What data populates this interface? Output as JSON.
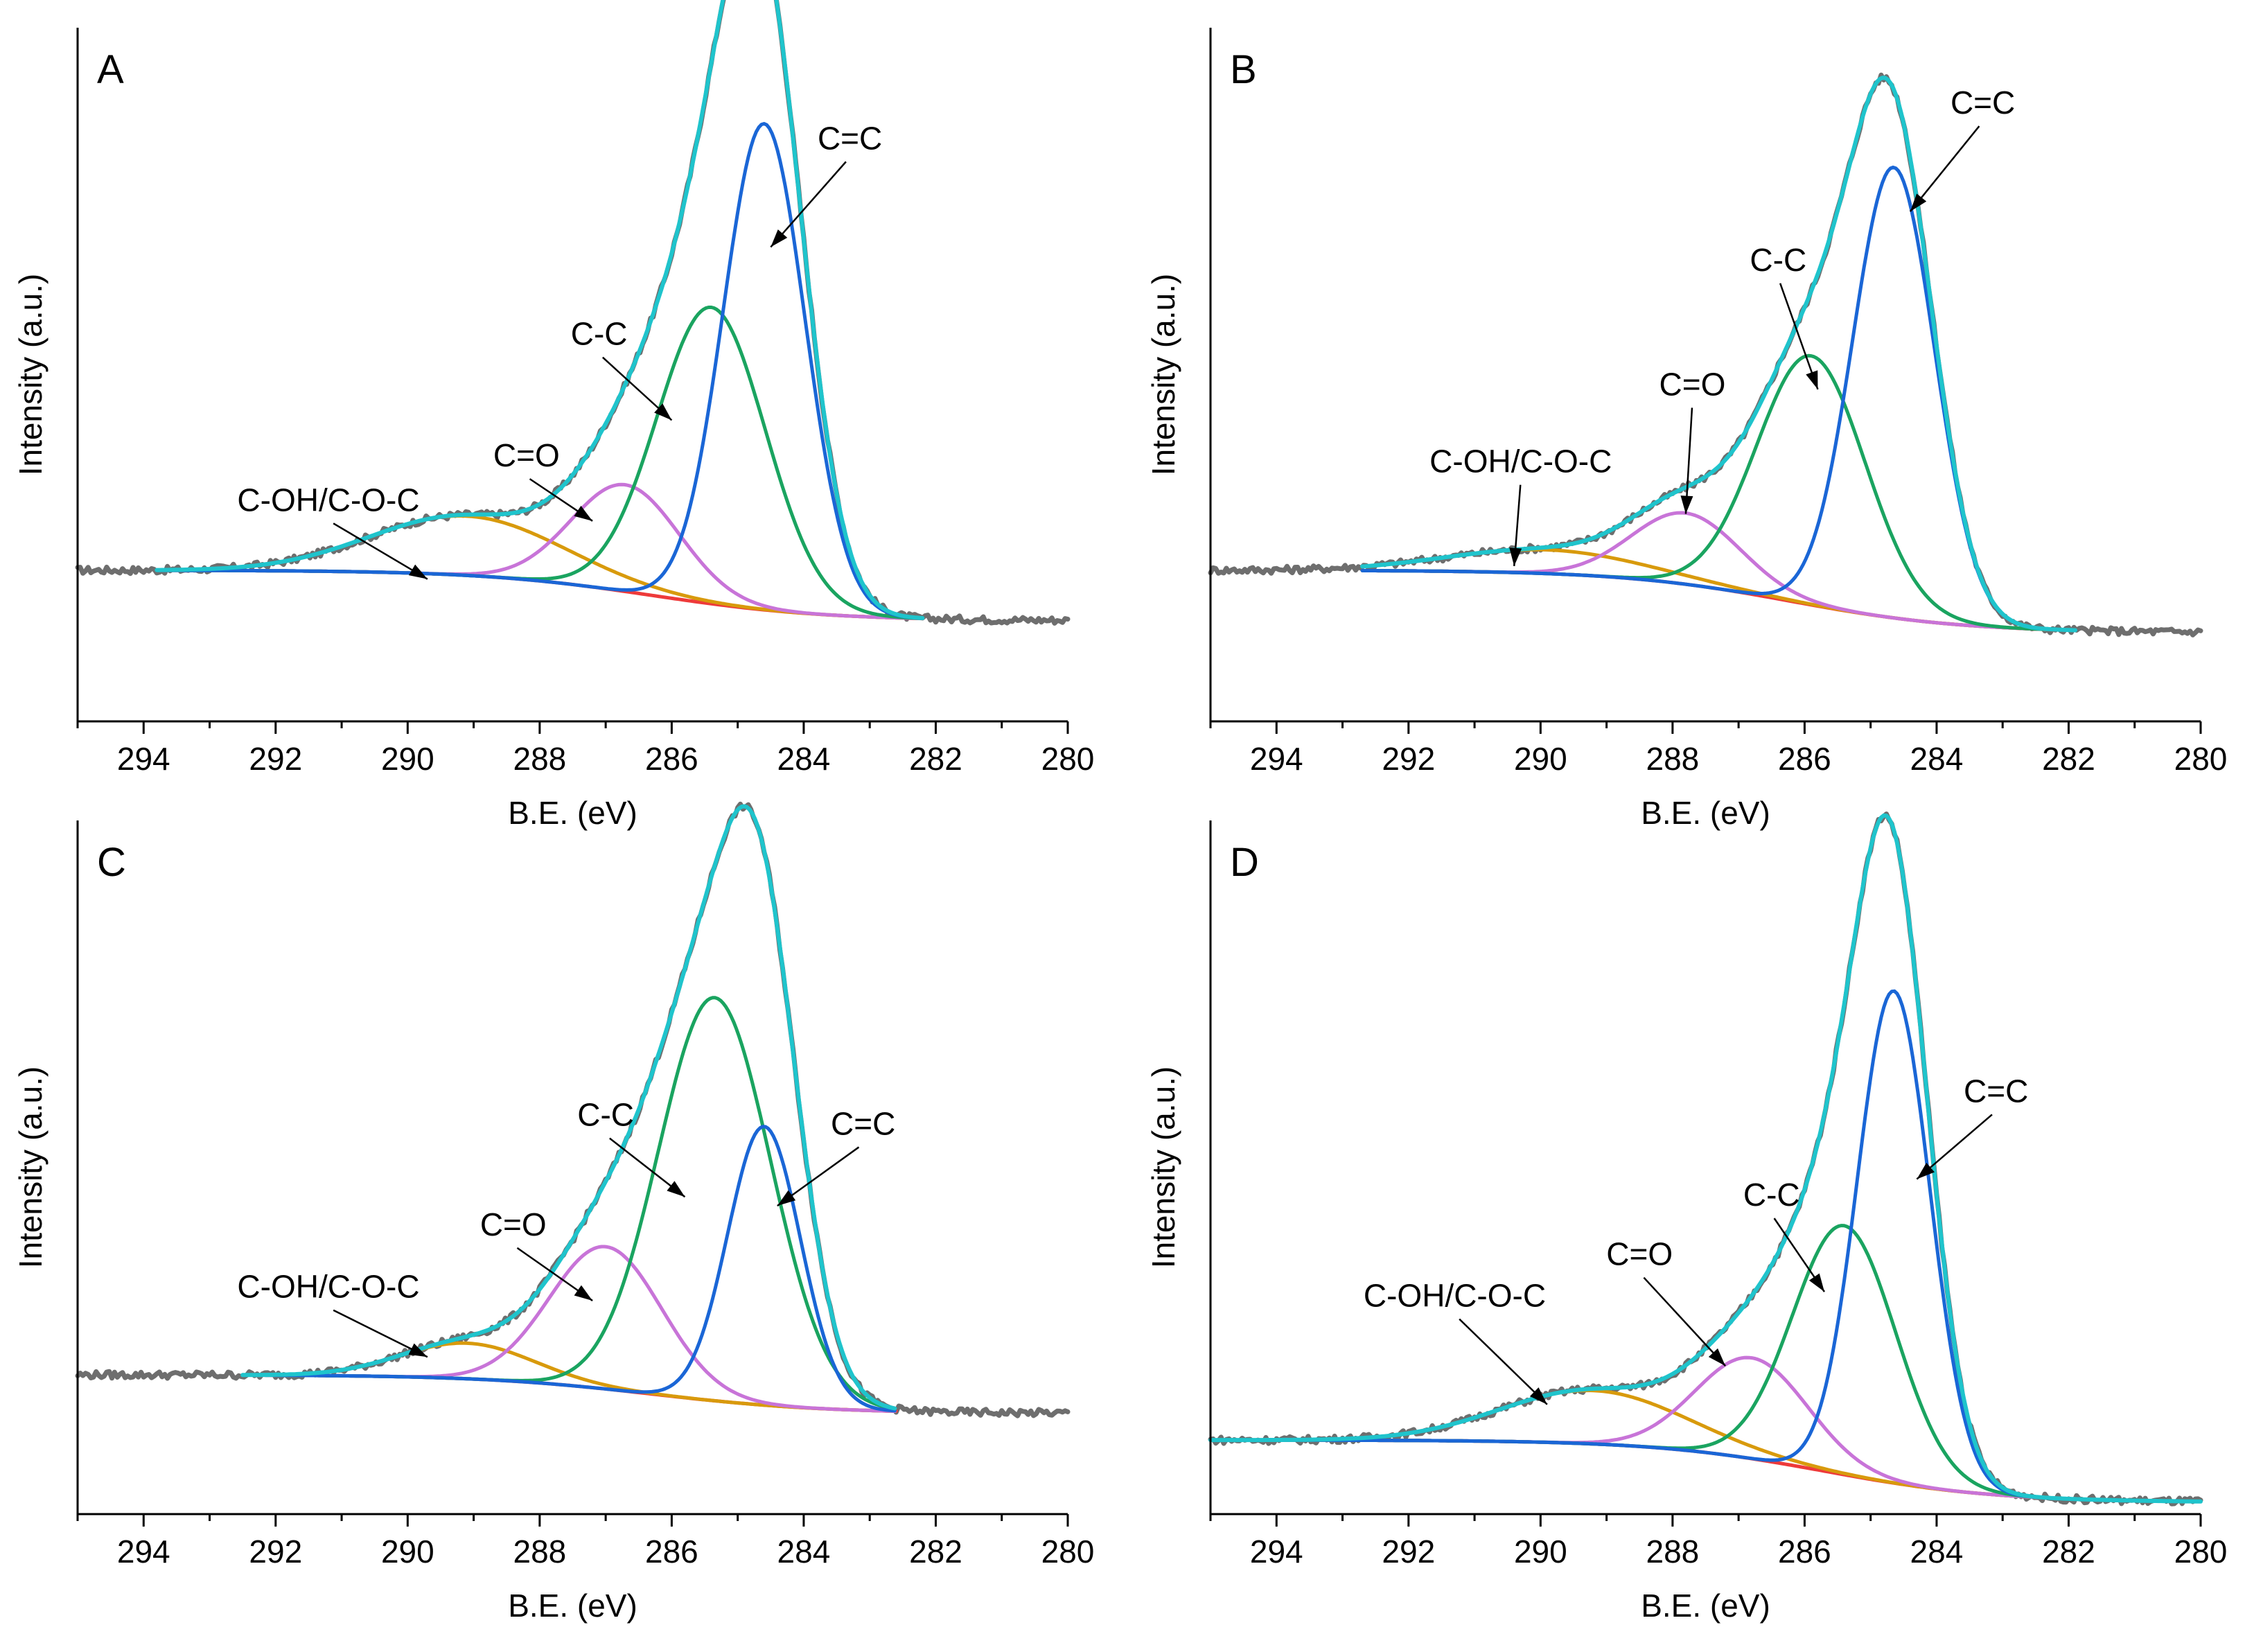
{
  "figure": {
    "colors": {
      "raw": "#6e6e6e",
      "envelope": "#1fc4cc",
      "background": "#ee3a3a",
      "C=C": "#1a66d6",
      "C-C": "#1aa460",
      "C=O": "#c874d8",
      "C-OH/C-O-C": "#d89a0c"
    }
  },
  "chart_data": [
    {
      "type": "line",
      "panel": "A",
      "xlabel": "B.E. (eV)",
      "ylabel": "Intensity (a.u.)",
      "xlim": [
        295,
        280
      ],
      "x_ticks": [
        "294",
        "292",
        "290",
        "288",
        "286",
        "284",
        "282",
        "280"
      ],
      "ylim": [
        0,
        1.17
      ],
      "fit_range": [
        293.8,
        282.2
      ],
      "raw_range": [
        295,
        280
      ],
      "background": {
        "left": 0.255,
        "right": 0.17,
        "center": 286.3,
        "width": 1.3
      },
      "peaks": [
        {
          "name": "C=C",
          "center": 284.6,
          "height": 0.82,
          "sigma": 0.62
        },
        {
          "name": "C-C",
          "center": 285.4,
          "height": 0.5,
          "sigma": 0.82
        },
        {
          "name": "C=O",
          "center": 286.7,
          "height": 0.18,
          "sigma": 0.82
        },
        {
          "name": "C-OH/C-O-C",
          "center": 289.1,
          "height": 0.1,
          "sigma": 1.45
        }
      ],
      "annotations": [
        {
          "label": "C=C",
          "text_at": [
            283.3,
            0.965
          ],
          "arrow_to": [
            284.5,
            0.8
          ]
        },
        {
          "label": "C-C",
          "text_at": [
            287.1,
            0.635
          ],
          "arrow_to": [
            286.0,
            0.508
          ]
        },
        {
          "label": "C=O",
          "text_at": [
            288.2,
            0.43
          ],
          "arrow_to": [
            287.2,
            0.338
          ]
        },
        {
          "label": "C-OH/C-O-C",
          "text_at": [
            291.2,
            0.355
          ],
          "arrow_to": [
            289.7,
            0.24
          ]
        }
      ]
    },
    {
      "type": "line",
      "panel": "B",
      "xlabel": "B.E. (eV)",
      "ylabel": "Intensity (a.u.)",
      "xlim": [
        295,
        280
      ],
      "x_ticks": [
        "294",
        "292",
        "290",
        "288",
        "286",
        "284",
        "282",
        "280"
      ],
      "ylim": [
        0,
        1.17
      ],
      "fit_range": [
        292.7,
        281.9
      ],
      "raw_range": [
        295,
        280
      ],
      "background": {
        "left": 0.255,
        "right": 0.15,
        "center": 286.2,
        "width": 1.3
      },
      "peaks": [
        {
          "name": "C=C",
          "center": 284.65,
          "height": 0.76,
          "sigma": 0.62
        },
        {
          "name": "C-C",
          "center": 285.9,
          "height": 0.42,
          "sigma": 0.82
        },
        {
          "name": "C=O",
          "center": 287.8,
          "height": 0.12,
          "sigma": 0.82
        },
        {
          "name": "C-OH/C-O-C",
          "center": 289.9,
          "height": 0.04,
          "sigma": 1.5
        }
      ],
      "annotations": [
        {
          "label": "C=C",
          "text_at": [
            283.3,
            1.025
          ],
          "arrow_to": [
            284.4,
            0.86
          ]
        },
        {
          "label": "C-C",
          "text_at": [
            286.4,
            0.76
          ],
          "arrow_to": [
            285.8,
            0.56
          ]
        },
        {
          "label": "C=O",
          "text_at": [
            287.7,
            0.55
          ],
          "arrow_to": [
            287.8,
            0.35
          ]
        },
        {
          "label": "C-OH/C-O-C",
          "text_at": [
            290.3,
            0.42
          ],
          "arrow_to": [
            290.4,
            0.262
          ]
        }
      ]
    },
    {
      "type": "line",
      "panel": "C",
      "xlabel": "B.E. (eV)",
      "ylabel": "Intensity (a.u.)",
      "xlim": [
        295,
        280
      ],
      "x_ticks": [
        "294",
        "292",
        "290",
        "288",
        "286",
        "284",
        "282",
        "280"
      ],
      "ylim": [
        0,
        1.17
      ],
      "fit_range": [
        292.5,
        282.6
      ],
      "raw_range": [
        295,
        280
      ],
      "background": {
        "left": 0.235,
        "right": 0.17,
        "center": 286.3,
        "width": 1.3
      },
      "peaks": [
        {
          "name": "C=C",
          "center": 284.6,
          "height": 0.47,
          "sigma": 0.55
        },
        {
          "name": "C-C",
          "center": 285.35,
          "height": 0.68,
          "sigma": 0.85
        },
        {
          "name": "C=O",
          "center": 287.0,
          "height": 0.24,
          "sigma": 0.85
        },
        {
          "name": "C-OH/C-O-C",
          "center": 289.1,
          "height": 0.06,
          "sigma": 1.0
        }
      ],
      "annotations": [
        {
          "label": "C=C",
          "text_at": [
            283.1,
            0.64
          ],
          "arrow_to": [
            284.4,
            0.52
          ]
        },
        {
          "label": "C-C",
          "text_at": [
            287.0,
            0.655
          ],
          "arrow_to": [
            285.8,
            0.535
          ]
        },
        {
          "label": "C=O",
          "text_at": [
            288.4,
            0.47
          ],
          "arrow_to": [
            287.2,
            0.36
          ]
        },
        {
          "label": "C-OH/C-O-C",
          "text_at": [
            291.2,
            0.365
          ],
          "arrow_to": [
            289.7,
            0.265
          ]
        }
      ]
    },
    {
      "type": "line",
      "panel": "D",
      "xlabel": "B.E. (eV)",
      "ylabel": "Intensity (a.u.)",
      "xlim": [
        295,
        280
      ],
      "x_ticks": [
        "294",
        "292",
        "290",
        "288",
        "286",
        "284",
        "282",
        "280"
      ],
      "ylim": [
        0,
        1.17
      ],
      "fit_range": [
        295,
        280
      ],
      "raw_range": [
        295,
        280
      ],
      "background": {
        "left": 0.125,
        "right": 0.02,
        "center": 285.7,
        "width": 1.3
      },
      "peaks": [
        {
          "name": "C=C",
          "center": 284.65,
          "height": 0.83,
          "sigma": 0.55
        },
        {
          "name": "C-C",
          "center": 285.4,
          "height": 0.42,
          "sigma": 0.78
        },
        {
          "name": "C=O",
          "center": 286.8,
          "height": 0.17,
          "sigma": 0.85
        },
        {
          "name": "C-OH/C-O-C",
          "center": 289.2,
          "height": 0.09,
          "sigma": 1.4
        }
      ],
      "annotations": [
        {
          "label": "C=C",
          "text_at": [
            283.1,
            0.695
          ],
          "arrow_to": [
            284.3,
            0.565
          ]
        },
        {
          "label": "C-C",
          "text_at": [
            286.5,
            0.52
          ],
          "arrow_to": [
            285.7,
            0.375
          ]
        },
        {
          "label": "C=O",
          "text_at": [
            288.5,
            0.42
          ],
          "arrow_to": [
            287.2,
            0.25
          ]
        },
        {
          "label": "C-OH/C-O-C",
          "text_at": [
            291.3,
            0.35
          ],
          "arrow_to": [
            289.9,
            0.185
          ]
        }
      ]
    }
  ]
}
